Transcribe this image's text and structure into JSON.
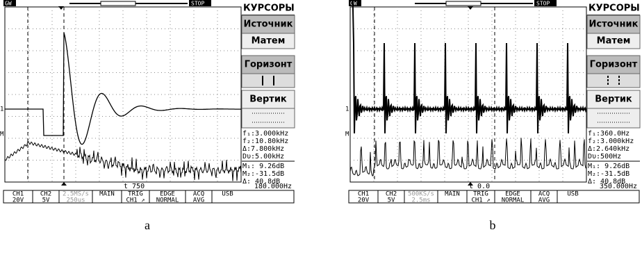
{
  "panels": [
    {
      "status": "GW",
      "stop": "STOP",
      "menu": [
        "КУРСОРЫ",
        "Источник",
        "Матем",
        "Горизонт",
        "Вертик"
      ],
      "readouts": [
        "f₁:3.000kHz",
        "f₂:10.80kHz",
        "Δ:7.800kHz",
        "Dυ:5.00kHz",
        "M₁: 9.26dB",
        "M₂:-31.5dB",
        "Δ: 40.8dB"
      ],
      "time_offset": "t 750",
      "cursor_freq": "180.000Hz",
      "channels": [
        "1",
        "M"
      ],
      "footer": [
        [
          "CH1",
          "20V"
        ],
        [
          "CH2",
          "5V"
        ],
        [
          "2.5MS/s",
          "250us"
        ],
        [
          "MAIN"
        ],
        [
          "TRIG",
          "CH1 ↗"
        ],
        [
          "EDGE",
          "NORMAL"
        ],
        [
          "ACQ",
          "AVG"
        ],
        [
          "USB"
        ]
      ],
      "caption": "a"
    },
    {
      "status": "GW",
      "stop": "STOP",
      "menu": [
        "КУРСОРЫ",
        "Источник",
        "Матем",
        "Горизонт",
        "Вертик"
      ],
      "readouts": [
        "f₁:360.0Hz",
        "f₂:3.000kHz",
        "Δ:2.640kHz",
        "Dυ:500Hz",
        "M₁: 9.26dB",
        "M₂:-31.5dB",
        "Δ: 40.8dB"
      ],
      "time_offset": "t 0.0",
      "cursor_freq": "350.000Hz",
      "channels": [
        "1",
        "M"
      ],
      "footer": [
        [
          "CH1",
          "20V"
        ],
        [
          "CH2",
          "5V"
        ],
        [
          "500KS/s",
          "2.5ms"
        ],
        [
          "MAIN"
        ],
        [
          "TRIG",
          "CH1 ↗"
        ],
        [
          "EDGE",
          "NORMAL"
        ],
        [
          "ACQ",
          "AVG"
        ],
        [
          "USB"
        ]
      ],
      "caption": "b"
    }
  ]
}
